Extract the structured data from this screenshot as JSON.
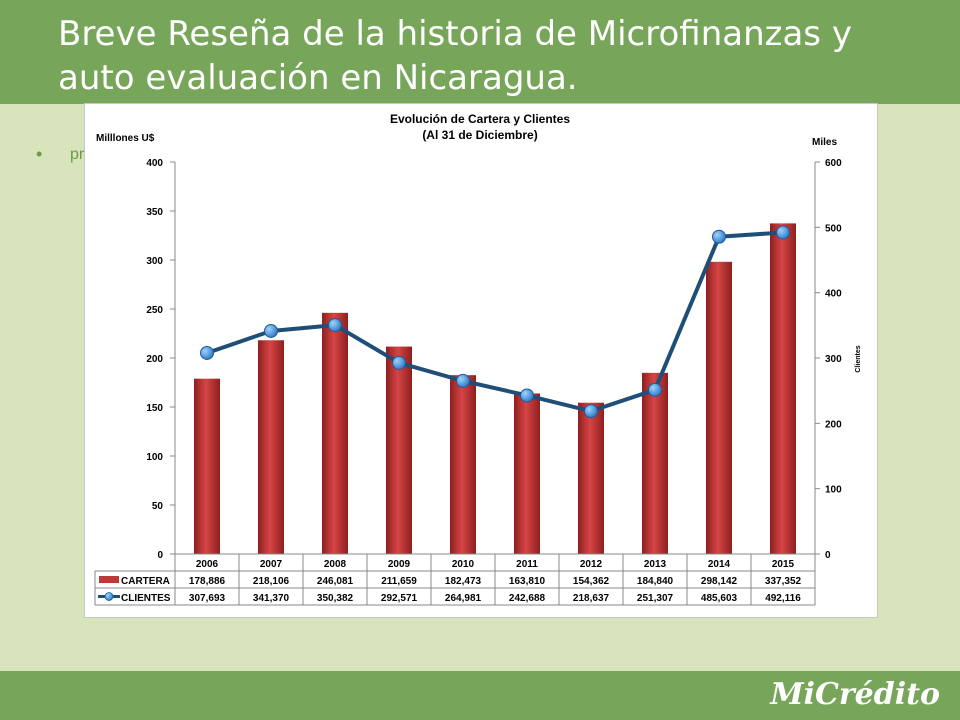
{
  "slide": {
    "title": "Breve Reseña  de la historia de Microfinanzas y auto evaluación en Nicaragua.",
    "bullet_text": "pr",
    "footer_logo": "MiCrédito"
  },
  "colors": {
    "header": "#77a55a",
    "background": "#d8e4bc",
    "bar": "#c0393a",
    "line": "#1f4e79",
    "marker": "#3a8fd8"
  },
  "chart_data": {
    "type": "bar",
    "title": "Evolución de Cartera y Clientes",
    "subtitle": "(Al 31 de Diciembre)",
    "ylabel": "Milllones U$",
    "y2label_top": "Miles",
    "y2label_side": "Clientes",
    "categories": [
      "2006",
      "2007",
      "2008",
      "2009",
      "2010",
      "2011",
      "2012",
      "2013",
      "2014",
      "2015"
    ],
    "ylim": [
      0,
      400
    ],
    "y2lim": [
      0,
      600
    ],
    "yticks": [
      "0",
      "50",
      "100",
      "150",
      "200",
      "250",
      "300",
      "350",
      "400"
    ],
    "y2ticks": [
      "0",
      "100",
      "200",
      "300",
      "400",
      "500",
      "600"
    ],
    "series": [
      {
        "name": "CARTERA",
        "kind": "bar",
        "axis": "left",
        "values": [
          178.886,
          218.106,
          246.081,
          211.659,
          182.473,
          163.81,
          154.362,
          184.84,
          298.142,
          337.352
        ],
        "labels": [
          "178,886",
          "218,106",
          "246,081",
          "211,659",
          "182,473",
          "163,810",
          "154,362",
          "184,840",
          "298,142",
          "337,352"
        ]
      },
      {
        "name": "CLIENTES",
        "kind": "line",
        "axis": "right",
        "values": [
          307.693,
          341.37,
          350.382,
          292.571,
          264.981,
          242.688,
          218.637,
          251.307,
          485.603,
          492.116
        ],
        "labels": [
          "307,693",
          "341,370",
          "350,382",
          "292,571",
          "264,981",
          "242,688",
          "218,637",
          "251,307",
          "485,603",
          "492,116"
        ]
      }
    ],
    "legend": "data-table-below",
    "grid": false
  }
}
